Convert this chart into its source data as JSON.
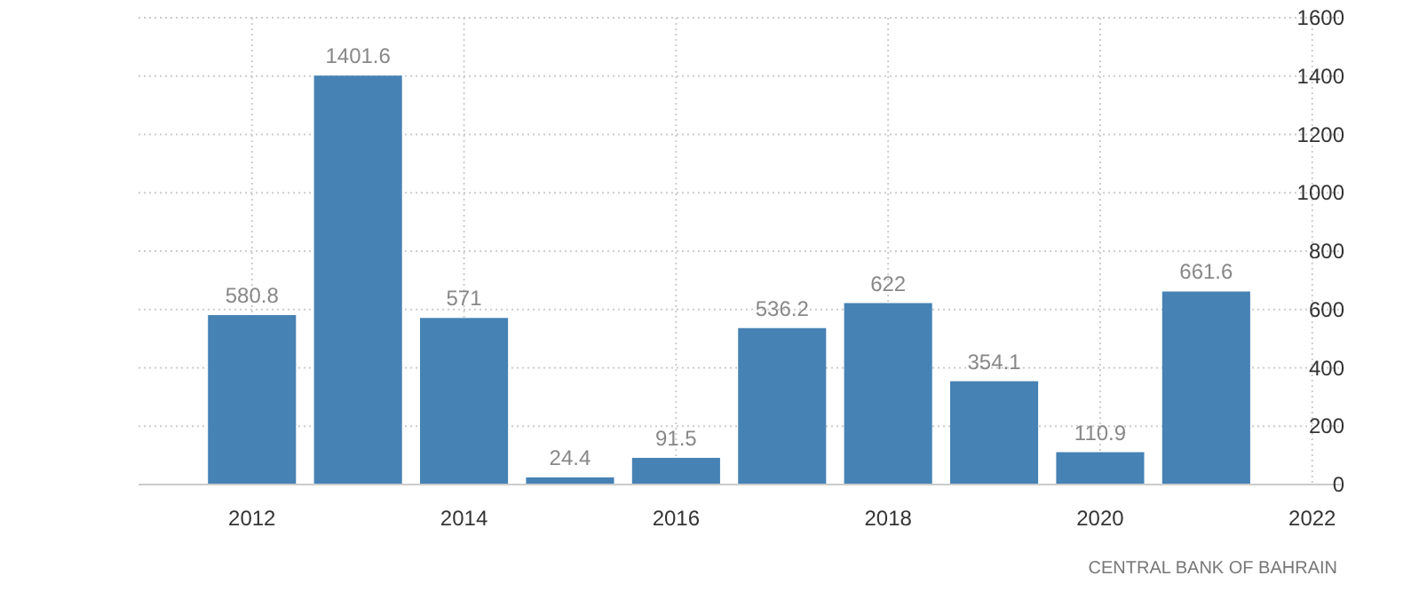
{
  "chart_data": {
    "type": "bar",
    "x": [
      2012,
      2013,
      2014,
      2015,
      2016,
      2017,
      2018,
      2019,
      2020,
      2021
    ],
    "values": [
      580.8,
      1401.6,
      571,
      24.4,
      91.5,
      536.2,
      622,
      354.1,
      110.9,
      661.6
    ],
    "color": "#4682b4",
    "data_labels": true,
    "grid": true,
    "xlim": [
      2010.93,
      2022.27
    ],
    "xticks": [
      2012,
      2014,
      2016,
      2018,
      2020,
      2022
    ],
    "ylim": [
      0,
      1600
    ],
    "yticks": [
      0,
      200,
      400,
      600,
      800,
      1000,
      1200,
      1400,
      1600
    ],
    "annotations": [
      "CENTRAL BANK OF BAHRAIN"
    ]
  }
}
